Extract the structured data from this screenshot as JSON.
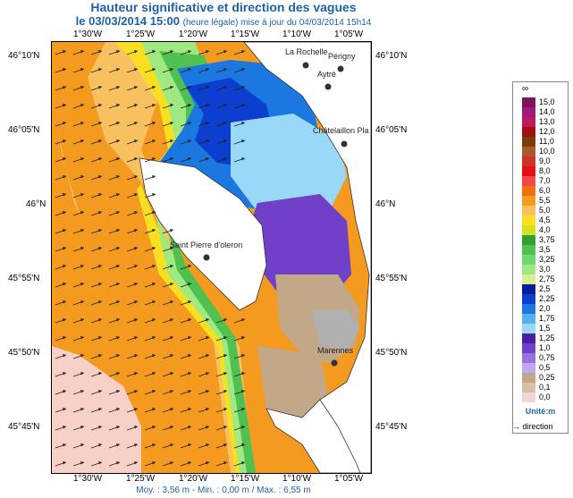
{
  "header": {
    "title": "Hauteur significative et direction des vagues",
    "date_line": "le 03/03/2014 15:00",
    "update_note": "(heure légale) mise à jour du 04/03/2014 15h14"
  },
  "axes": {
    "lon_ticks": [
      "1°30'W",
      "1°25'W",
      "1°20'W",
      "1°15'W",
      "1°10'W",
      "1°05'W"
    ],
    "lat_ticks": [
      "46°10'N",
      "46°05'N",
      "46°N",
      "45°55'N",
      "45°50'N",
      "45°45'N"
    ]
  },
  "places": [
    {
      "name": "La Rochelle"
    },
    {
      "name": "Périgny"
    },
    {
      "name": "Aytré"
    },
    {
      "name": "Châtelaillon Pla"
    },
    {
      "name": "Saint Pierre d'oleron"
    },
    {
      "name": "Marennes"
    }
  ],
  "stats": "Moy. : 3,56 m   -   Min. : 0,00 m / Max. : 6,55 m",
  "legend": {
    "top_symbol": "∞",
    "levels": [
      {
        "label": "15,0",
        "color": "#7a1460"
      },
      {
        "label": "14,0",
        "color": "#a01878"
      },
      {
        "label": "13,0",
        "color": "#c01858"
      },
      {
        "label": "12,0",
        "color": "#a01010"
      },
      {
        "label": "11,0",
        "color": "#7a3c10"
      },
      {
        "label": "10,0",
        "color": "#a85a28"
      },
      {
        "label": "9,0",
        "color": "#d03030"
      },
      {
        "label": "8,0",
        "color": "#e81010"
      },
      {
        "label": "7,0",
        "color": "#f04848"
      },
      {
        "label": "6,0",
        "color": "#f07010"
      },
      {
        "label": "5,5",
        "color": "#f39a1f"
      },
      {
        "label": "5,0",
        "color": "#f9c060"
      },
      {
        "label": "4,5",
        "color": "#f8e020"
      },
      {
        "label": "4,0",
        "color": "#d8e020"
      },
      {
        "label": "3,75",
        "color": "#30a030"
      },
      {
        "label": "3,5",
        "color": "#50c050"
      },
      {
        "label": "3,25",
        "color": "#70d870"
      },
      {
        "label": "3,0",
        "color": "#a0e880"
      },
      {
        "label": "2,75",
        "color": "#d8f090"
      },
      {
        "label": "2,5",
        "color": "#0a1c9c"
      },
      {
        "label": "2,25",
        "color": "#0c3ed0"
      },
      {
        "label": "2,0",
        "color": "#1a78e0"
      },
      {
        "label": "1,75",
        "color": "#58b0f0"
      },
      {
        "label": "1,5",
        "color": "#9ad8f8"
      },
      {
        "label": "1,25",
        "color": "#4a20a0"
      },
      {
        "label": "1,0",
        "color": "#7040c8"
      },
      {
        "label": "0,75",
        "color": "#9870e0"
      },
      {
        "label": "0,5",
        "color": "#c0a8f0"
      },
      {
        "label": "0,25",
        "color": "#c2a888"
      },
      {
        "label": "0,1",
        "color": "#d8c0a8"
      },
      {
        "label": "0,0",
        "color": "#f0d8d0"
      }
    ],
    "unit": "Unité:m",
    "direction_label": "direction"
  },
  "colors": {
    "land": "#ffffff",
    "offshore": "#f39a1f",
    "offshore_south": "#f7d0c8",
    "light_orange": "#f9c060",
    "yellow": "#f8e020",
    "green": "#50c050",
    "light_green": "#a0e880",
    "blue": "#1a78e0",
    "dark_blue": "#0c3ed0",
    "cyan": "#9ad8f8",
    "purple": "#7040c8",
    "tan": "#c2a888",
    "grey": "#b0b0b0",
    "arrow": "#222222"
  }
}
